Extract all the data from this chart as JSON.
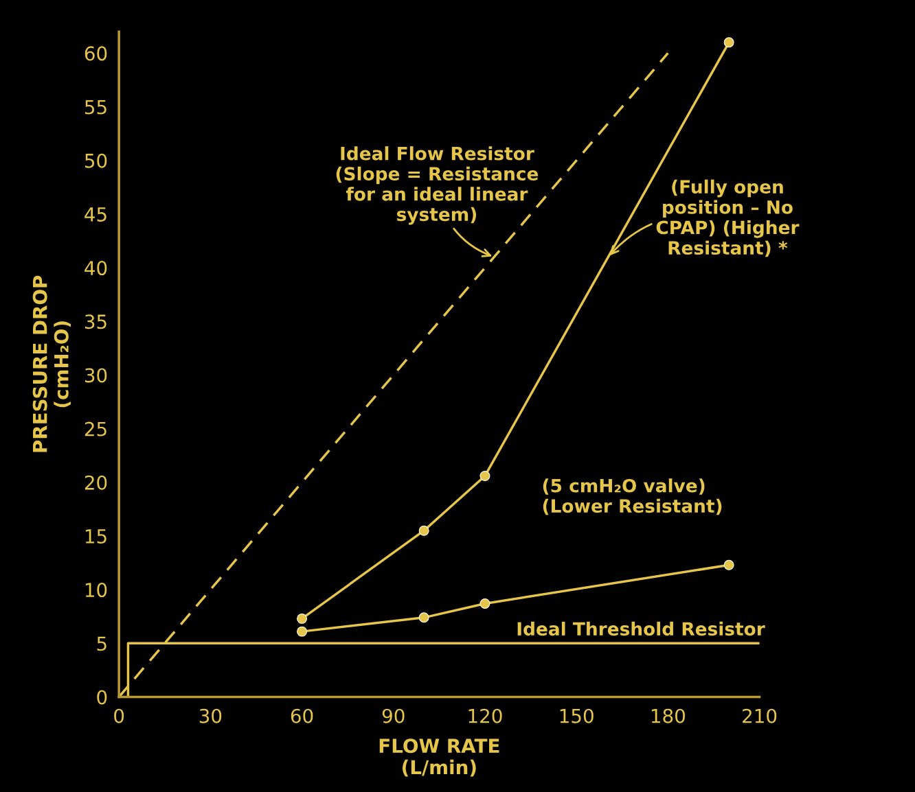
{
  "chart_data": {
    "type": "line",
    "xlabel": "FLOW RATE\n(L/min)",
    "ylabel": "PRESSURE DROP\n(cmH₂O)",
    "xlim": [
      0,
      210
    ],
    "ylim": [
      0,
      62
    ],
    "xticks": [
      0,
      30,
      60,
      90,
      120,
      150,
      180,
      210
    ],
    "yticks": [
      0,
      5,
      10,
      15,
      20,
      25,
      30,
      35,
      40,
      45,
      50,
      55,
      60
    ],
    "grid": false,
    "legend": false,
    "series": [
      {
        "color": "#e6c64a",
        "x": [
          0,
          180
        ],
        "values": [
          0,
          60
        ],
        "line_style": "dashed",
        "marker": "none"
      },
      {
        "color": "#e6c64a",
        "x": [
          60,
          100,
          120,
          200
        ],
        "values": [
          7.3,
          15.5,
          20.6,
          61
        ],
        "line_style": "solid",
        "marker": "circle"
      },
      {
        "color": "#e6c64a",
        "x": [
          60,
          100,
          120,
          200
        ],
        "values": [
          6.1,
          7.4,
          8.7,
          12.3
        ],
        "line_style": "solid",
        "marker": "circle"
      },
      {
        "color": "#e6c64a",
        "x": [
          3,
          3,
          210
        ],
        "values": [
          0,
          5,
          5
        ],
        "line_style": "solid",
        "marker": "none"
      }
    ],
    "annotations": [
      {
        "text": "Ideal Flow Resistor\n(Slope = Resistance\nfor an ideal linear\nsystem)",
        "x": 123,
        "y": 41
      },
      {
        "text": "(Fully open\nposition – No\nCPAP) (Higher\nResistant) *",
        "x": 160.4,
        "y": 41
      },
      "(5 cmH₂O valve)\n(Lower Resistant)",
      "Ideal Threshold Resistor"
    ]
  }
}
